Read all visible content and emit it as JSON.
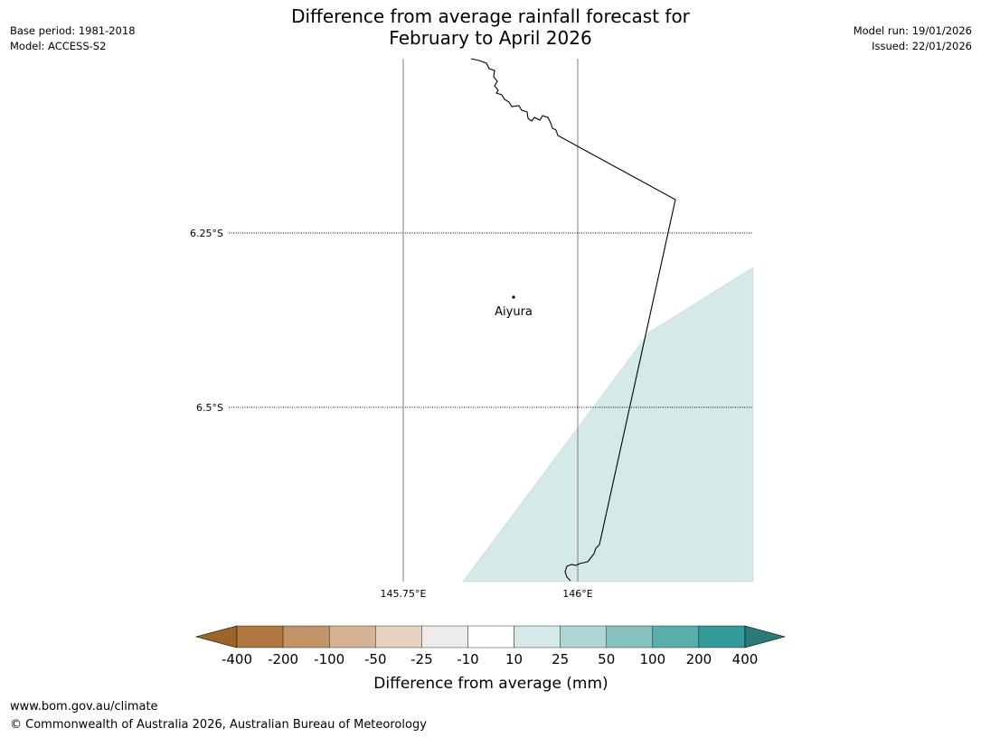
{
  "title": {
    "line1": "Difference from average rainfall forecast for",
    "line2": "February to April 2026"
  },
  "meta_left": {
    "base_period": "Base period: 1981-2018",
    "model": "Model: ACCESS-S2"
  },
  "meta_right": {
    "model_run": "Model run: 19/01/2026",
    "issued": "Issued: 22/01/2026"
  },
  "map": {
    "lat_labels": [
      "6.25°S",
      "6.5°S"
    ],
    "lon_labels": [
      "145.75°E",
      "146°E"
    ],
    "place": {
      "name": "Aiyura"
    },
    "colors": {
      "coastline": "#000000",
      "gridline": "#7f7f7f",
      "forecast_fill": "#d5e9e8"
    }
  },
  "colorbar": {
    "label": "Difference from average (mm)",
    "tick_labels": [
      "-400",
      "-200",
      "-100",
      "-50",
      "-25",
      "-10",
      "10",
      "25",
      "50",
      "100",
      "200",
      "400"
    ],
    "colors": [
      "#9c642b",
      "#b07840",
      "#c1946a",
      "#d4b294",
      "#e6d2c0",
      "#eeebe8",
      "#ffffff",
      "#d5e9e8",
      "#aed6d5",
      "#86c1bf",
      "#5aaeac",
      "#339c9a",
      "#2a7a78"
    ]
  },
  "footer": {
    "url": "www.bom.gov.au/climate",
    "copyright": "© Commonwealth of Australia 2026, Australian Bureau of Meteorology"
  }
}
